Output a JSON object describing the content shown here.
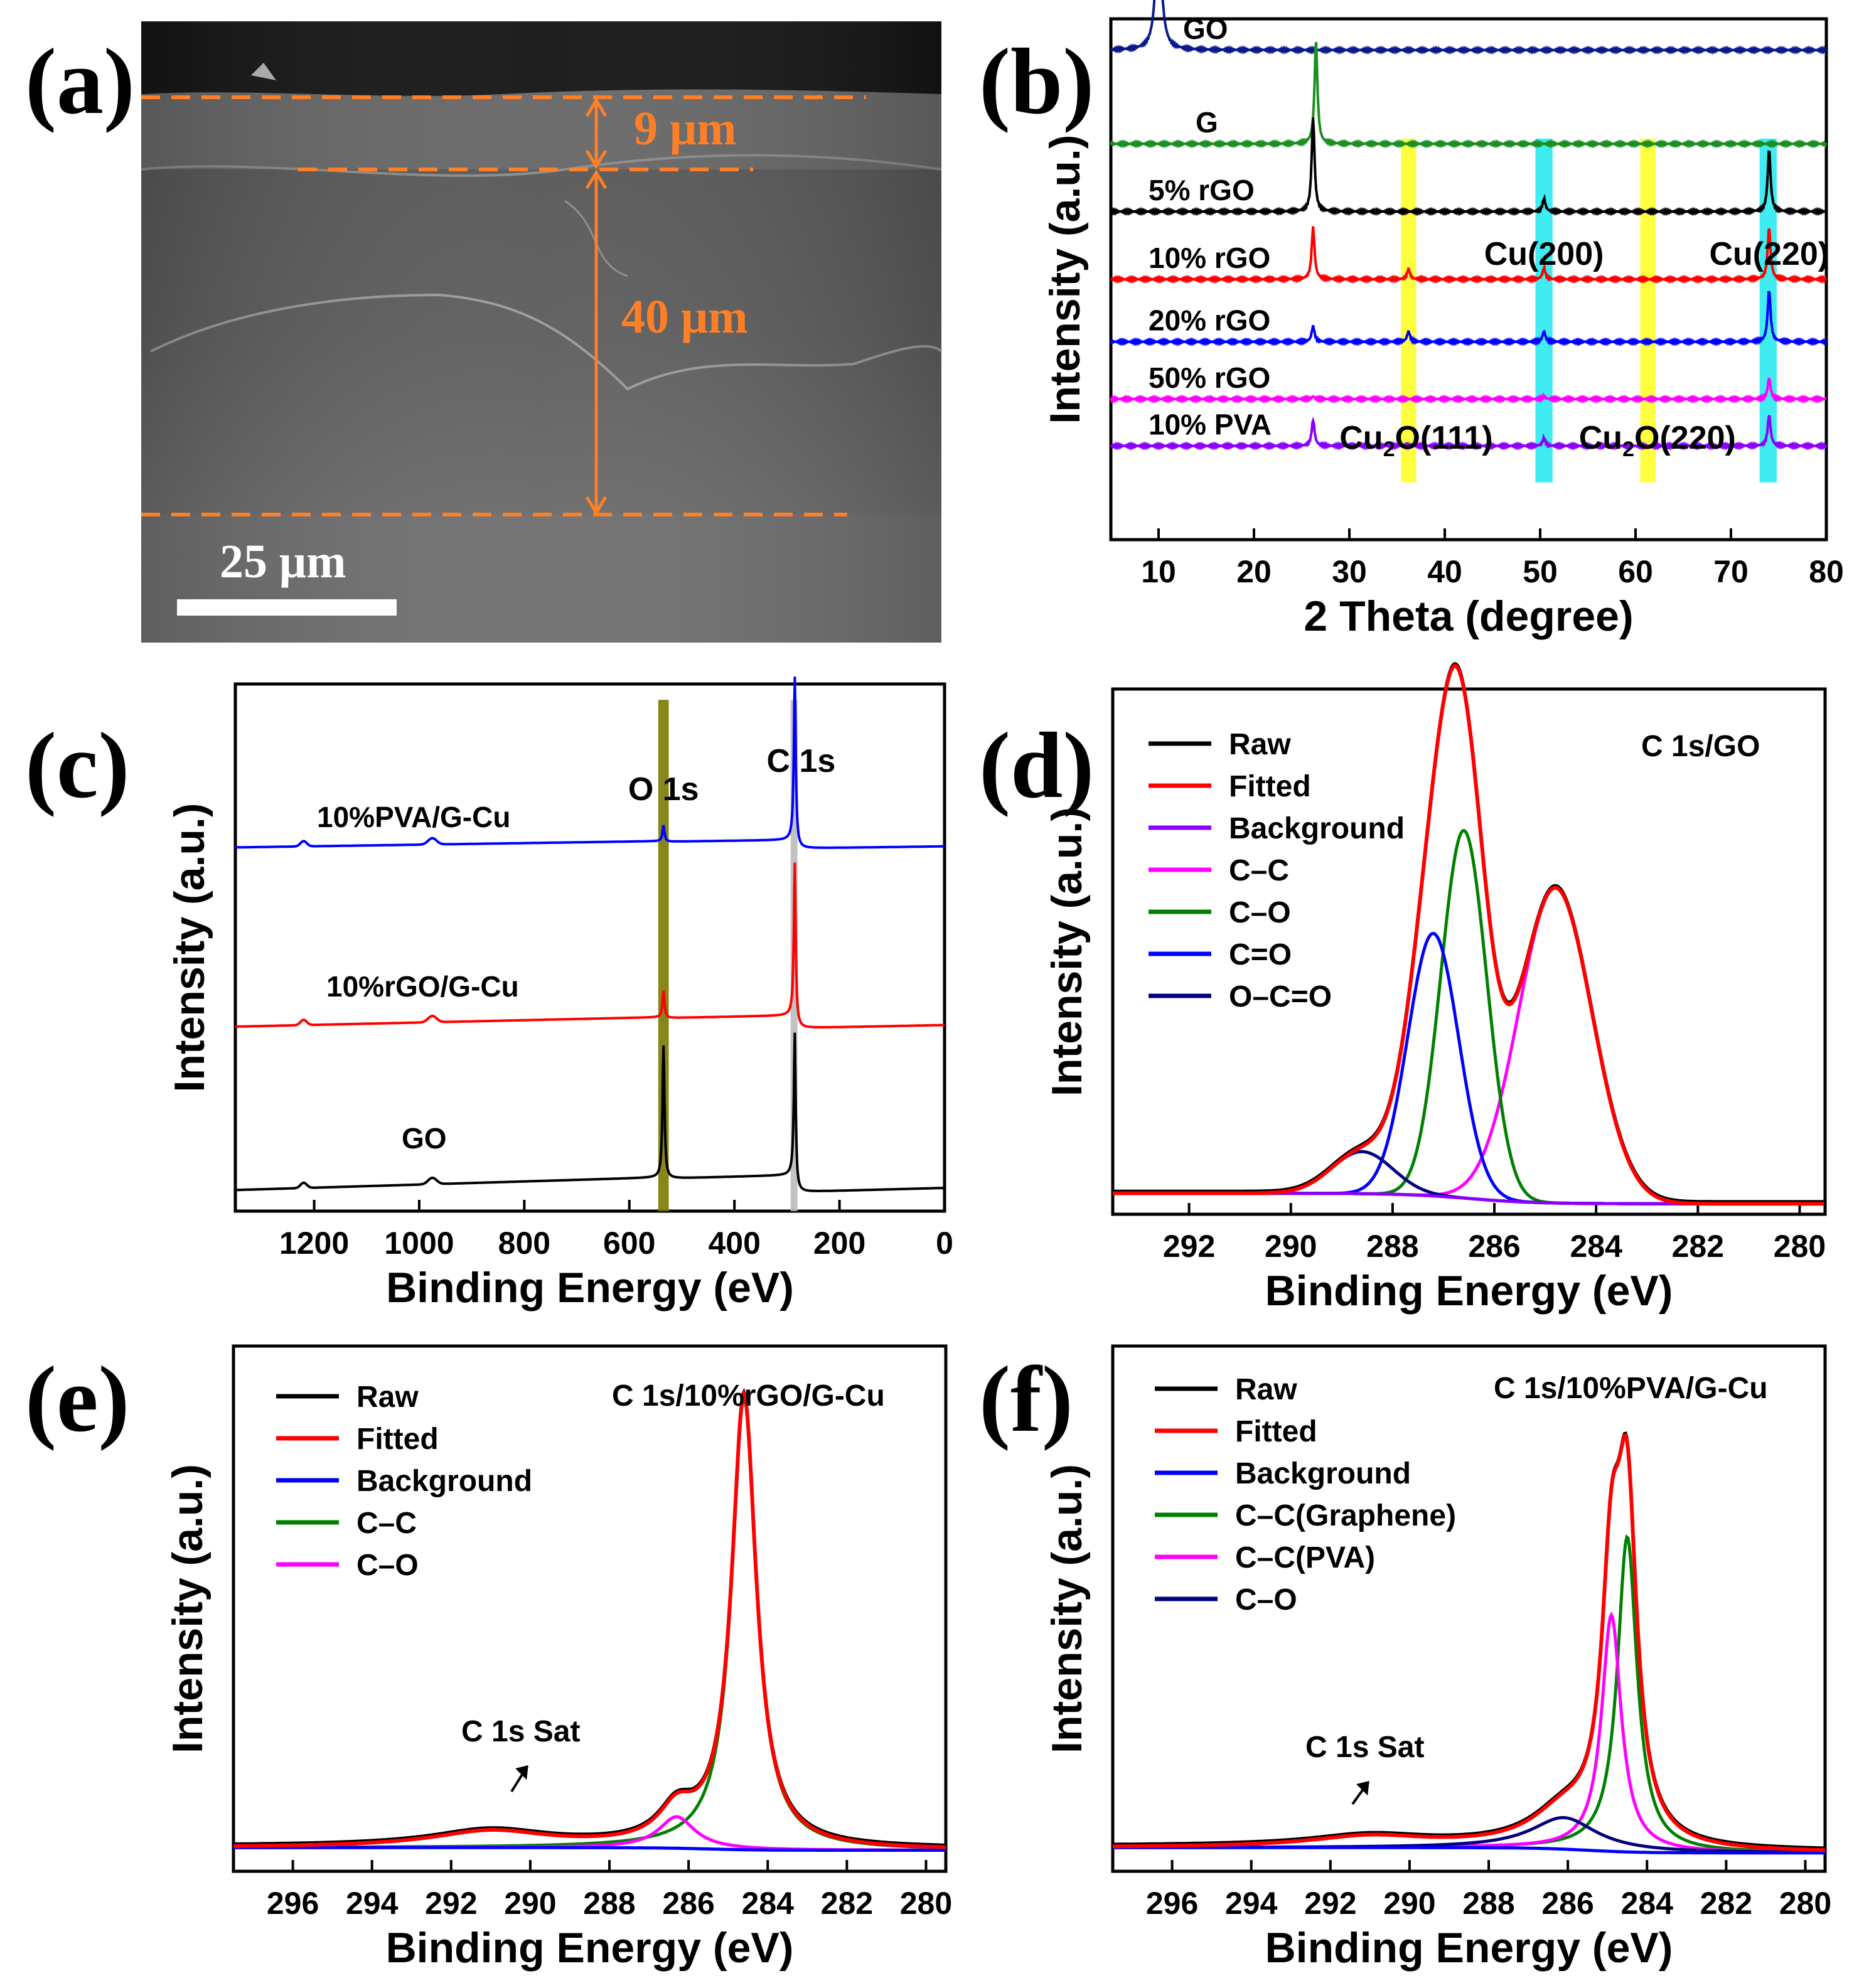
{
  "panel_letters": [
    "(a)",
    "(b)",
    "(c)",
    "(d)",
    "(e)",
    "(f)"
  ],
  "colors": {
    "black": "#000000",
    "red": "#ff0000",
    "blue": "#0000ff",
    "green": "#008000",
    "magenta": "#ff00ff",
    "navy": "#000080",
    "violet": "#8b00ff",
    "dkgreen": "#1a9020",
    "dkblue": "#1010a0",
    "orange": "#ff7f27",
    "yellowband": "#ffff00",
    "cyanband": "#00e5ee",
    "oliveband": "#7a7a00",
    "grayband": "#bbbbbb"
  },
  "sem": {
    "labels": {
      "top_layer": "9 μm",
      "bottom_layer": "40 μm",
      "scalebar": "25 μm"
    }
  },
  "chart_data": [
    {
      "panel": "b",
      "type": "line",
      "title": "",
      "xlabel": "2 Theta (degree)",
      "ylabel": "Intensity (a.u.)",
      "xlim": [
        5,
        80
      ],
      "xticks": [
        10,
        20,
        30,
        40,
        50,
        60,
        70,
        80
      ],
      "series": [
        {
          "name": "GO",
          "color": "#0a1a8c",
          "baseline": 0.94,
          "peaks": [
            [
              10,
              0.24,
              0.6
            ]
          ]
        },
        {
          "name": "G",
          "color": "#1a9020",
          "baseline": 0.76,
          "peaks": [
            [
              26.5,
              0.2,
              0.3
            ]
          ]
        },
        {
          "name": "5% rGO",
          "color": "#000000",
          "baseline": 0.63,
          "peaks": [
            [
              26.2,
              0.18,
              0.3
            ],
            [
              50.4,
              0.025,
              0.3
            ],
            [
              74,
              0.12,
              0.3
            ]
          ]
        },
        {
          "name": "10% rGO",
          "color": "#ff0000",
          "baseline": 0.5,
          "peaks": [
            [
              26.2,
              0.1,
              0.3
            ],
            [
              36.2,
              0.02,
              0.3
            ],
            [
              50.4,
              0.022,
              0.3
            ],
            [
              74,
              0.1,
              0.3
            ]
          ]
        },
        {
          "name": "20% rGO",
          "color": "#0000ff",
          "baseline": 0.38,
          "peaks": [
            [
              26.2,
              0.03,
              0.3
            ],
            [
              36.2,
              0.02,
              0.3
            ],
            [
              50.4,
              0.02,
              0.3
            ],
            [
              74,
              0.1,
              0.3
            ]
          ]
        },
        {
          "name": "50% rGO",
          "color": "#ff00ff",
          "baseline": 0.27,
          "peaks": [
            [
              26.2,
              0.005,
              0.3
            ],
            [
              50.4,
              0.005,
              0.3
            ],
            [
              74,
              0.04,
              0.3
            ]
          ]
        },
        {
          "name": "10% PVA",
          "color": "#8b00ff",
          "baseline": 0.18,
          "peaks": [
            [
              26.2,
              0.05,
              0.3
            ],
            [
              50.4,
              0.015,
              0.3
            ],
            [
              74,
              0.06,
              0.3
            ]
          ]
        }
      ],
      "bands": [
        {
          "x": [
            35.4,
            37.0
          ],
          "color": "#ffff00"
        },
        {
          "x": [
            49.5,
            51.3
          ],
          "color": "#00e5ee"
        },
        {
          "x": [
            60.5,
            62.1
          ],
          "color": "#ffff00"
        },
        {
          "x": [
            73.0,
            74.8
          ],
          "color": "#00e5ee"
        }
      ],
      "annotations": [
        {
          "text": "Cu(200)",
          "x": 50.4
        },
        {
          "text": "Cu(220)",
          "x": 74
        },
        {
          "text": "Cu",
          "sub": "2",
          "mid": "O",
          "tail": "(111)",
          "x": 36.2
        },
        {
          "text": "Cu",
          "sub": "2",
          "mid": "O",
          "tail": "(220)",
          "x": 61.3
        }
      ]
    },
    {
      "panel": "c",
      "type": "line",
      "title": "",
      "xlabel": "Binding Energy (eV)",
      "ylabel": "Intensity (a.u.)",
      "xlim": [
        1350,
        0
      ],
      "xticks": [
        1200,
        1000,
        800,
        600,
        400,
        200,
        0
      ],
      "series": [
        {
          "name": "10%PVA/G-Cu",
          "color": "#0000ff",
          "baseline": 0.69,
          "slope": 0.02,
          "o1s": 0.03,
          "c1s": 0.31
        },
        {
          "name": "10%rGO/G-Cu",
          "color": "#ff0000",
          "baseline": 0.35,
          "slope": 0.03,
          "o1s": 0.05,
          "c1s": 0.29
        },
        {
          "name": "GO",
          "color": "#000000",
          "baseline": 0.04,
          "slope": 0.04,
          "o1s": 0.25,
          "c1s": 0.27
        }
      ],
      "bands": [
        {
          "x": [
            545,
            525
          ],
          "color": "#7a7a00"
        },
        {
          "x": [
            293,
            280
          ],
          "color": "#bbbbbb"
        }
      ],
      "annotations": [
        {
          "text": "O 1s",
          "x": 535
        },
        {
          "text": "C 1s",
          "x": 285
        }
      ]
    },
    {
      "panel": "d",
      "type": "line",
      "title": "C 1s/GO",
      "xlabel": "Binding Energy (eV)",
      "ylabel": "Intensity (a.u.)",
      "xlim": [
        293.5,
        279.5
      ],
      "xticks": [
        292,
        290,
        288,
        286,
        284,
        282,
        280
      ],
      "legend": [
        "Raw",
        "Fitted",
        "Background",
        "C–C",
        "C–O",
        "C=O",
        "O–C=O"
      ],
      "legend_colors": [
        "#000000",
        "#ff0000",
        "#8b00ff",
        "#ff00ff",
        "#008000",
        "#0000ff",
        "#000080"
      ],
      "components": [
        {
          "name": "C–C",
          "center": 284.8,
          "height": 0.6,
          "sigma": 0.72
        },
        {
          "name": "C–O",
          "center": 286.6,
          "height": 0.7,
          "sigma": 0.45
        },
        {
          "name": "C=O",
          "center": 287.2,
          "height": 0.5,
          "sigma": 0.5
        },
        {
          "name": "O–C=O",
          "center": 288.6,
          "height": 0.08,
          "sigma": 0.6
        }
      ]
    },
    {
      "panel": "e",
      "type": "line",
      "title": "C 1s/10%rGO/G-Cu",
      "xlabel": "Binding Energy (eV)",
      "ylabel": "Intensity (a.u.)",
      "xlim": [
        297.5,
        279.5
      ],
      "xticks": [
        296,
        294,
        292,
        290,
        288,
        286,
        284,
        282,
        280
      ],
      "legend": [
        "Raw",
        "Fitted",
        "Background",
        "C–C",
        "C–O"
      ],
      "legend_colors": [
        "#000000",
        "#ff0000",
        "#0000ff",
        "#008000",
        "#ff00ff"
      ],
      "annotation": "C 1s Sat",
      "components": [
        {
          "name": "C–C",
          "center": 284.6,
          "height": 0.86,
          "sigma": 0.38
        },
        {
          "name": "C–O",
          "center": 286.3,
          "height": 0.06,
          "sigma": 0.55
        },
        {
          "name": "Sat",
          "center": 291,
          "height": 0.03,
          "sigma": 1.8
        }
      ]
    },
    {
      "panel": "f",
      "type": "line",
      "title": "C 1s/10%PVA/G-Cu",
      "xlabel": "Binding Energy (eV)",
      "ylabel": "Intensity (a.u.)",
      "xlim": [
        297.5,
        279.5
      ],
      "xticks": [
        296,
        294,
        292,
        290,
        288,
        286,
        284,
        282,
        280
      ],
      "legend": [
        "Raw",
        "Fitted",
        "Background",
        "C–C(Graphene)",
        "C–C(PVA)",
        "C–O"
      ],
      "legend_colors": [
        "#000000",
        "#ff0000",
        "#0000ff",
        "#008000",
        "#ff00ff",
        "#000080"
      ],
      "annotation": "C 1s Sat",
      "components": [
        {
          "name": "C–C(Graphene)",
          "center": 284.5,
          "height": 0.6,
          "sigma": 0.3
        },
        {
          "name": "C–C(PVA)",
          "center": 284.9,
          "height": 0.45,
          "sigma": 0.3
        },
        {
          "name": "C–O",
          "center": 286.1,
          "height": 0.06,
          "sigma": 1.0
        },
        {
          "name": "Sat",
          "center": 291,
          "height": 0.02,
          "sigma": 1.8
        }
      ]
    }
  ]
}
